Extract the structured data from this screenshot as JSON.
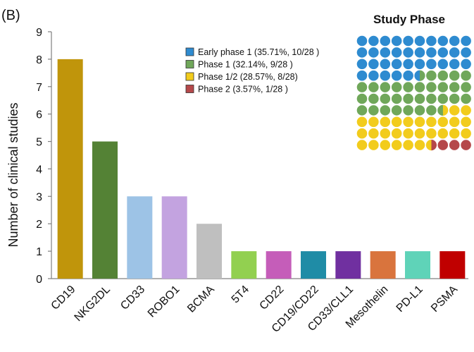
{
  "panel_label": "(B)",
  "chart_data": [
    {
      "type": "bar",
      "title": "",
      "xlabel": "",
      "ylabel": "Number of clinical studies",
      "ylim": [
        0,
        9
      ],
      "yticks": [
        "0",
        "1",
        "2",
        "3",
        "4",
        "5",
        "6",
        "7",
        "8",
        "9"
      ],
      "grid": false,
      "categories": [
        "CD19",
        "NKG2DL",
        "CD33",
        "ROBO1",
        "BCMA",
        "5T4",
        "CD22",
        "CD19/CD22",
        "CD33/CLL1",
        "Mesothelin",
        "PD-L1",
        "PSMA"
      ],
      "values": [
        8,
        5,
        3,
        3,
        2,
        1,
        1,
        1,
        1,
        1,
        1,
        1
      ],
      "colors": [
        "#C0950B",
        "#548235",
        "#9DC3E6",
        "#C3A3E0",
        "#BFBFBF",
        "#92D050",
        "#C55DB9",
        "#1F8CA6",
        "#7030A0",
        "#D9743D",
        "#5FD3B8",
        "#C00000"
      ]
    },
    {
      "type": "waffle",
      "title": "Study Phase",
      "legend_position": "top-left of inset",
      "total": 28,
      "grid_rows": 10,
      "grid_cols": 10,
      "series": [
        {
          "name": "Early phase 1 (35.71%, 10/28 )",
          "value": 10,
          "percent": 35.71,
          "color": "#2E8BD0"
        },
        {
          "name": "Phase 1 (32.14%, 9/28 )",
          "value": 9,
          "percent": 32.14,
          "color": "#70A75A"
        },
        {
          "name": "Phase 1/2 (28.57%, 8/28)",
          "value": 8,
          "percent": 28.57,
          "color": "#F2CC1C"
        },
        {
          "name": "Phase 2 (3.57%, 1/28 )",
          "value": 1,
          "percent": 3.57,
          "color": "#B5484A"
        }
      ]
    }
  ]
}
